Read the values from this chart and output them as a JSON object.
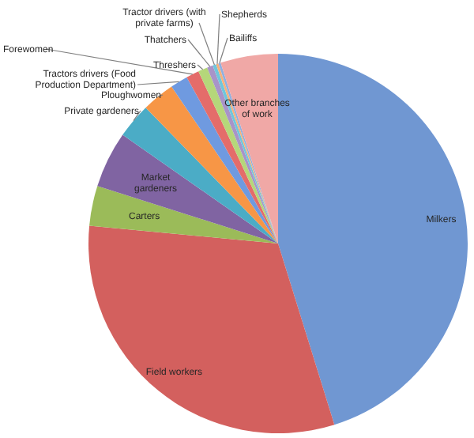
{
  "chart_data": {
    "type": "pie",
    "categories": [
      "Milkers",
      "Field workers",
      "Carters",
      "Market gardeners",
      "Private gardeners",
      "Ploughwomen",
      "Tractors drivers (Food Production Department)",
      "Forewomen",
      "Threshers",
      "Thatchers",
      "Tractor drivers (with private farms)",
      "Shepherds",
      "Bailiffs",
      "Other branches of work"
    ],
    "values": [
      45.2,
      31.3,
      3.4,
      4.8,
      3.0,
      2.8,
      1.5,
      1.1,
      0.8,
      0.5,
      0.3,
      0.2,
      0.2,
      4.9
    ],
    "colors": [
      "#7097d2",
      "#d3605e",
      "#9bbb59",
      "#8064a2",
      "#4bacc6",
      "#f79646",
      "#6f9ae0",
      "#e46c6a",
      "#b5d77a",
      "#a894c8",
      "#6fc6dc",
      "#f9b07a",
      "#8fb0e0",
      "#f0a8a6"
    ]
  }
}
